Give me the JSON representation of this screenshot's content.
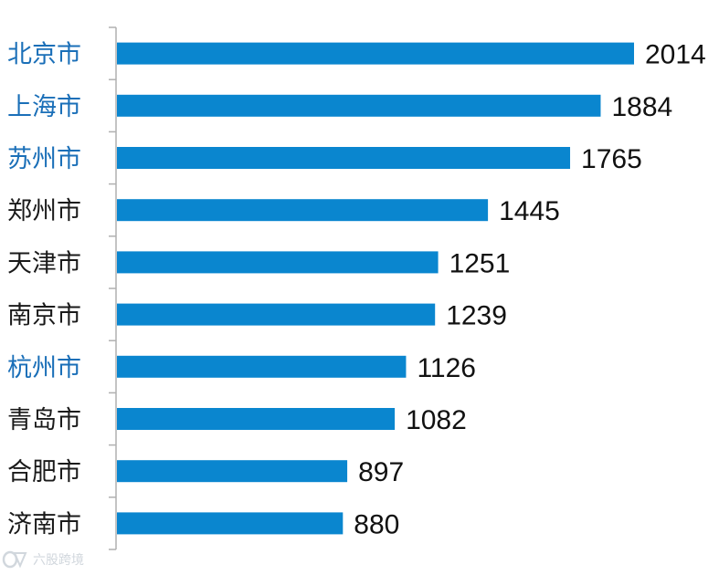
{
  "chart_data": {
    "type": "bar",
    "orientation": "horizontal",
    "categories": [
      "北京市",
      "上海市",
      "苏州市",
      "郑州市",
      "天津市",
      "南京市",
      "杭州市",
      "青岛市",
      "合肥市",
      "济南市"
    ],
    "values": [
      2014,
      1884,
      1765,
      1445,
      1251,
      1239,
      1126,
      1082,
      897,
      880
    ],
    "value_labels": [
      "2014",
      "1884",
      "1765",
      "1445",
      "1251",
      "1239",
      "1126",
      "1082",
      "897",
      "880"
    ],
    "highlighted": [
      true,
      true,
      true,
      false,
      false,
      false,
      true,
      false,
      false,
      false
    ],
    "title": "",
    "xlabel": "",
    "ylabel": "",
    "xlim": [
      0,
      2014
    ],
    "grid": false,
    "legend": "none"
  },
  "colors": {
    "bar": "#0a86cf",
    "label_highlight": "#1a6fb8",
    "label_default": "#1a1a1a",
    "axis": "#b0b0b0",
    "value_text": "#111111"
  },
  "watermark": {
    "icon": "rocket-logo-icon",
    "text": "六股跨境"
  }
}
